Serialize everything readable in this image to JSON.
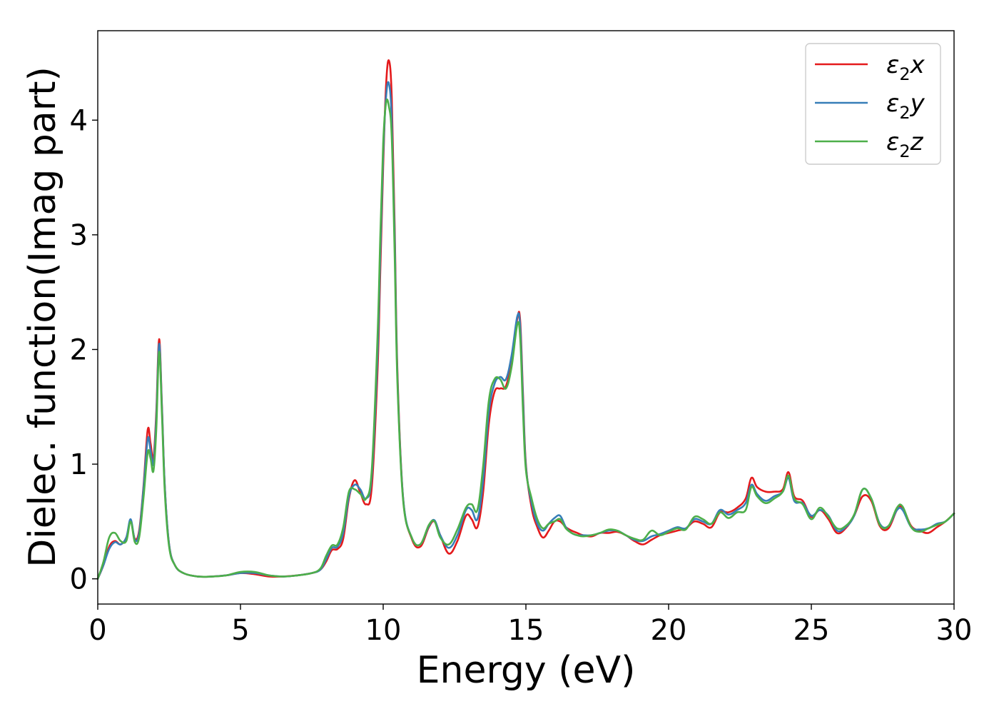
{
  "chart_data": {
    "type": "line",
    "xlabel": "Energy (eV)",
    "ylabel": "Dielec. function(Imag part)",
    "xlim": [
      0,
      30
    ],
    "ylim": [
      -0.22,
      4.78
    ],
    "xticks": [
      0,
      5,
      10,
      15,
      20,
      25,
      30
    ],
    "yticks": [
      0,
      1,
      2,
      3,
      4
    ],
    "grid": false,
    "legend_position": "top-right",
    "series": [
      {
        "name": "ε2x",
        "legend_base": "ε",
        "legend_sub": "2",
        "legend_suffix": "x",
        "color": "#e41a1c",
        "x": [
          0,
          0.2,
          0.4,
          0.6,
          0.8,
          1.0,
          1.15,
          1.3,
          1.45,
          1.6,
          1.75,
          1.85,
          1.95,
          2.05,
          2.15,
          2.25,
          2.35,
          2.5,
          2.7,
          3.0,
          3.5,
          4.0,
          4.5,
          5.0,
          5.5,
          6.0,
          6.5,
          7.0,
          7.5,
          7.8,
          8.0,
          8.2,
          8.4,
          8.6,
          8.8,
          9.0,
          9.2,
          9.4,
          9.6,
          9.8,
          9.9,
          10.0,
          10.1,
          10.2,
          10.3,
          10.4,
          10.5,
          10.7,
          11.0,
          11.3,
          11.6,
          11.8,
          12.0,
          12.3,
          12.6,
          12.9,
          13.1,
          13.3,
          13.5,
          13.7,
          13.9,
          14.1,
          14.3,
          14.5,
          14.7,
          14.8,
          14.9,
          15.0,
          15.2,
          15.4,
          15.6,
          15.8,
          16.0,
          16.2,
          16.4,
          16.6,
          16.8,
          17.0,
          17.3,
          17.6,
          17.9,
          18.2,
          18.5,
          18.8,
          19.1,
          19.4,
          19.7,
          20.0,
          20.3,
          20.6,
          20.9,
          21.2,
          21.5,
          21.8,
          22.1,
          22.4,
          22.7,
          22.9,
          23.1,
          23.4,
          23.7,
          24.0,
          24.2,
          24.4,
          24.7,
          25.0,
          25.3,
          25.6,
          25.9,
          26.2,
          26.5,
          26.8,
          27.1,
          27.4,
          27.7,
          28.0,
          28.2,
          28.5,
          28.8,
          29.1,
          29.4,
          29.7,
          30.0
        ],
        "y": [
          0.0,
          0.12,
          0.28,
          0.33,
          0.3,
          0.36,
          0.5,
          0.35,
          0.42,
          0.8,
          1.3,
          1.18,
          1.05,
          1.45,
          2.09,
          1.5,
          0.8,
          0.3,
          0.12,
          0.05,
          0.02,
          0.02,
          0.03,
          0.05,
          0.04,
          0.02,
          0.02,
          0.03,
          0.05,
          0.08,
          0.15,
          0.25,
          0.26,
          0.35,
          0.7,
          0.86,
          0.75,
          0.65,
          0.8,
          1.8,
          2.7,
          3.6,
          4.3,
          4.52,
          4.2,
          3.1,
          1.8,
          0.7,
          0.35,
          0.28,
          0.45,
          0.5,
          0.38,
          0.22,
          0.33,
          0.55,
          0.52,
          0.45,
          0.75,
          1.35,
          1.63,
          1.66,
          1.68,
          1.9,
          2.27,
          2.25,
          1.6,
          1.0,
          0.62,
          0.45,
          0.36,
          0.42,
          0.5,
          0.5,
          0.45,
          0.42,
          0.4,
          0.38,
          0.37,
          0.4,
          0.4,
          0.41,
          0.38,
          0.33,
          0.3,
          0.34,
          0.38,
          0.4,
          0.42,
          0.44,
          0.5,
          0.48,
          0.45,
          0.58,
          0.58,
          0.62,
          0.7,
          0.88,
          0.8,
          0.76,
          0.76,
          0.78,
          0.93,
          0.72,
          0.68,
          0.54,
          0.6,
          0.52,
          0.4,
          0.44,
          0.55,
          0.72,
          0.68,
          0.46,
          0.44,
          0.6,
          0.62,
          0.46,
          0.42,
          0.4,
          0.45,
          0.5,
          0.57
        ]
      },
      {
        "name": "ε2y",
        "legend_base": "ε",
        "legend_sub": "2",
        "legend_suffix": "y",
        "color": "#377eb8",
        "x": [
          0,
          0.2,
          0.4,
          0.6,
          0.8,
          1.0,
          1.15,
          1.3,
          1.45,
          1.6,
          1.75,
          1.85,
          1.95,
          2.05,
          2.15,
          2.25,
          2.35,
          2.5,
          2.7,
          3.0,
          3.5,
          4.0,
          4.5,
          5.0,
          5.5,
          6.0,
          6.5,
          7.0,
          7.5,
          7.8,
          8.0,
          8.2,
          8.4,
          8.6,
          8.8,
          9.0,
          9.2,
          9.4,
          9.6,
          9.8,
          9.9,
          10.0,
          10.1,
          10.2,
          10.3,
          10.4,
          10.5,
          10.7,
          11.0,
          11.3,
          11.6,
          11.8,
          12.0,
          12.3,
          12.6,
          12.9,
          13.1,
          13.3,
          13.5,
          13.7,
          13.9,
          14.1,
          14.3,
          14.5,
          14.7,
          14.8,
          14.9,
          15.0,
          15.2,
          15.4,
          15.6,
          15.8,
          16.0,
          16.2,
          16.4,
          16.6,
          16.8,
          17.0,
          17.3,
          17.6,
          17.9,
          18.2,
          18.5,
          18.8,
          19.1,
          19.4,
          19.7,
          20.0,
          20.3,
          20.6,
          20.9,
          21.2,
          21.5,
          21.8,
          22.1,
          22.4,
          22.7,
          22.9,
          23.1,
          23.4,
          23.7,
          24.0,
          24.2,
          24.4,
          24.7,
          25.0,
          25.3,
          25.6,
          25.9,
          26.2,
          26.5,
          26.8,
          27.1,
          27.4,
          27.7,
          28.0,
          28.2,
          28.5,
          28.8,
          29.1,
          29.4,
          29.7,
          30.0
        ],
        "y": [
          0.0,
          0.12,
          0.26,
          0.32,
          0.3,
          0.36,
          0.52,
          0.34,
          0.4,
          0.78,
          1.22,
          1.12,
          1.0,
          1.4,
          2.05,
          1.48,
          0.8,
          0.3,
          0.12,
          0.05,
          0.02,
          0.02,
          0.03,
          0.05,
          0.05,
          0.03,
          0.02,
          0.03,
          0.05,
          0.08,
          0.17,
          0.27,
          0.28,
          0.4,
          0.72,
          0.82,
          0.78,
          0.7,
          0.9,
          1.95,
          2.85,
          3.7,
          4.2,
          4.32,
          4.0,
          3.0,
          1.75,
          0.7,
          0.36,
          0.3,
          0.46,
          0.51,
          0.38,
          0.27,
          0.38,
          0.6,
          0.6,
          0.52,
          0.85,
          1.45,
          1.7,
          1.76,
          1.74,
          1.95,
          2.29,
          2.2,
          1.55,
          0.98,
          0.66,
          0.48,
          0.42,
          0.48,
          0.53,
          0.55,
          0.45,
          0.4,
          0.38,
          0.38,
          0.38,
          0.4,
          0.42,
          0.42,
          0.38,
          0.34,
          0.33,
          0.37,
          0.39,
          0.42,
          0.45,
          0.44,
          0.52,
          0.5,
          0.48,
          0.6,
          0.56,
          0.6,
          0.66,
          0.82,
          0.74,
          0.68,
          0.72,
          0.76,
          0.88,
          0.68,
          0.66,
          0.55,
          0.6,
          0.55,
          0.42,
          0.45,
          0.55,
          0.78,
          0.7,
          0.48,
          0.46,
          0.6,
          0.6,
          0.45,
          0.43,
          0.44,
          0.48,
          0.5,
          0.57
        ]
      },
      {
        "name": "ε2z",
        "legend_base": "ε",
        "legend_sub": "2",
        "legend_suffix": "z",
        "color": "#4daf4a",
        "x": [
          0,
          0.2,
          0.4,
          0.6,
          0.8,
          1.0,
          1.15,
          1.3,
          1.45,
          1.6,
          1.75,
          1.85,
          1.95,
          2.05,
          2.15,
          2.25,
          2.35,
          2.5,
          2.7,
          3.0,
          3.5,
          4.0,
          4.5,
          5.0,
          5.5,
          6.0,
          6.5,
          7.0,
          7.5,
          7.8,
          8.0,
          8.2,
          8.4,
          8.6,
          8.8,
          9.0,
          9.2,
          9.4,
          9.6,
          9.8,
          9.9,
          10.0,
          10.1,
          10.2,
          10.3,
          10.4,
          10.5,
          10.7,
          11.0,
          11.3,
          11.6,
          11.8,
          12.0,
          12.3,
          12.6,
          12.9,
          13.1,
          13.3,
          13.5,
          13.7,
          13.9,
          14.1,
          14.3,
          14.5,
          14.7,
          14.8,
          14.9,
          15.0,
          15.2,
          15.4,
          15.6,
          15.8,
          16.0,
          16.2,
          16.4,
          16.6,
          16.8,
          17.0,
          17.3,
          17.6,
          17.9,
          18.2,
          18.5,
          18.8,
          19.1,
          19.4,
          19.7,
          20.0,
          20.3,
          20.6,
          20.9,
          21.2,
          21.5,
          21.8,
          22.1,
          22.4,
          22.7,
          22.9,
          23.1,
          23.4,
          23.7,
          24.0,
          24.2,
          24.4,
          24.7,
          25.0,
          25.3,
          25.6,
          25.9,
          26.2,
          26.5,
          26.8,
          27.1,
          27.4,
          27.7,
          28.0,
          28.2,
          28.5,
          28.8,
          29.1,
          29.4,
          29.7,
          30.0
        ],
        "y": [
          0.0,
          0.15,
          0.36,
          0.4,
          0.33,
          0.33,
          0.5,
          0.32,
          0.36,
          0.7,
          1.1,
          1.05,
          0.94,
          1.3,
          1.98,
          1.42,
          0.75,
          0.28,
          0.12,
          0.05,
          0.02,
          0.02,
          0.03,
          0.06,
          0.06,
          0.03,
          0.02,
          0.03,
          0.05,
          0.09,
          0.2,
          0.29,
          0.3,
          0.45,
          0.76,
          0.78,
          0.74,
          0.7,
          0.95,
          2.1,
          3.0,
          3.8,
          4.15,
          4.12,
          3.85,
          2.85,
          1.7,
          0.68,
          0.36,
          0.3,
          0.47,
          0.5,
          0.36,
          0.3,
          0.43,
          0.62,
          0.65,
          0.6,
          0.98,
          1.55,
          1.74,
          1.74,
          1.66,
          1.85,
          2.22,
          2.1,
          1.45,
          0.95,
          0.7,
          0.52,
          0.44,
          0.48,
          0.5,
          0.52,
          0.44,
          0.4,
          0.38,
          0.37,
          0.38,
          0.4,
          0.43,
          0.42,
          0.38,
          0.35,
          0.34,
          0.42,
          0.38,
          0.41,
          0.44,
          0.43,
          0.54,
          0.52,
          0.48,
          0.58,
          0.53,
          0.58,
          0.6,
          0.8,
          0.72,
          0.66,
          0.7,
          0.76,
          0.9,
          0.7,
          0.65,
          0.52,
          0.62,
          0.54,
          0.44,
          0.46,
          0.56,
          0.78,
          0.7,
          0.47,
          0.46,
          0.62,
          0.63,
          0.45,
          0.41,
          0.44,
          0.47,
          0.5,
          0.57
        ]
      }
    ]
  }
}
